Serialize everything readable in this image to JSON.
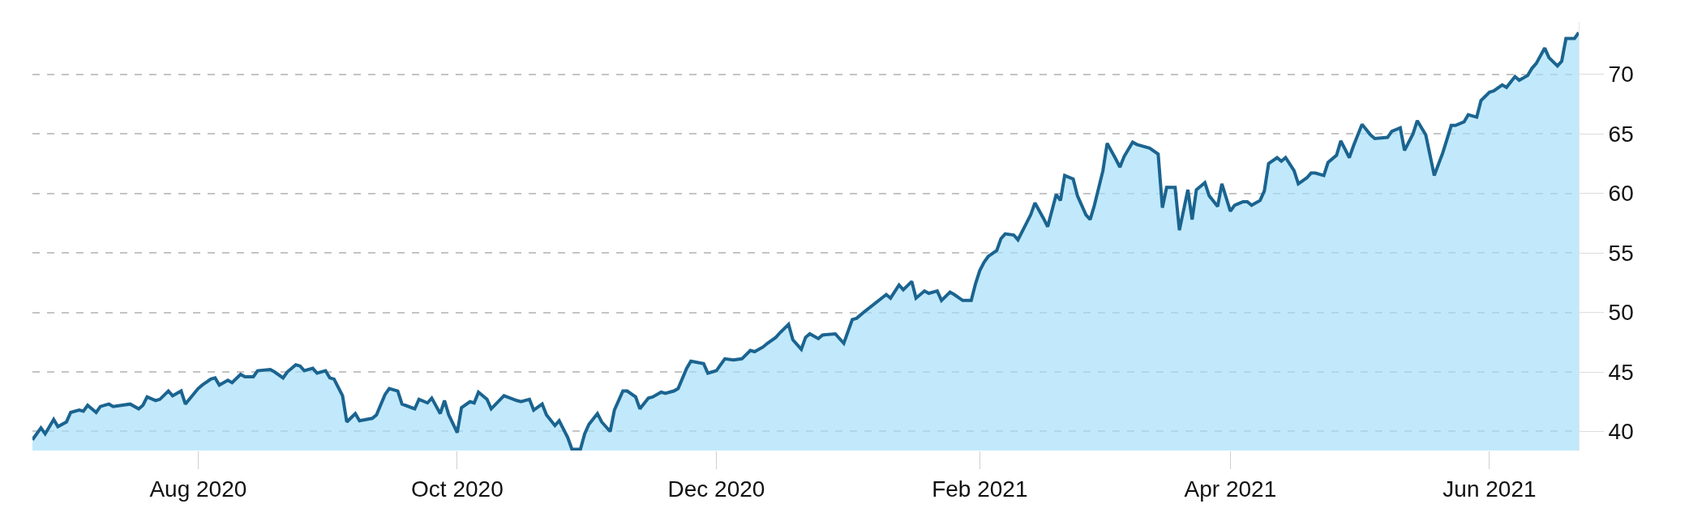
{
  "chart_data": {
    "type": "area",
    "x": [
      "2020-06-23",
      "2020-06-25",
      "2020-06-26",
      "2020-06-28",
      "2020-06-29",
      "2020-07-01",
      "2020-07-02",
      "2020-07-04",
      "2020-07-05",
      "2020-07-06",
      "2020-07-08",
      "2020-07-09",
      "2020-07-11",
      "2020-07-12",
      "2020-07-16",
      "2020-07-18",
      "2020-07-19",
      "2020-07-20",
      "2020-07-22",
      "2020-07-23",
      "2020-07-25",
      "2020-07-26",
      "2020-07-28",
      "2020-07-29",
      "2020-08-01",
      "2020-08-02",
      "2020-08-04",
      "2020-08-05",
      "2020-08-06",
      "2020-08-08",
      "2020-08-09",
      "2020-08-11",
      "2020-08-12",
      "2020-08-14",
      "2020-08-15",
      "2020-08-18",
      "2020-08-19",
      "2020-08-21",
      "2020-08-22",
      "2020-08-24",
      "2020-08-25",
      "2020-08-26",
      "2020-08-28",
      "2020-08-29",
      "2020-08-31",
      "2020-09-01",
      "2020-09-02",
      "2020-09-04",
      "2020-09-05",
      "2020-09-07",
      "2020-09-08",
      "2020-09-11",
      "2020-09-12",
      "2020-09-14",
      "2020-09-15",
      "2020-09-17",
      "2020-09-18",
      "2020-09-21",
      "2020-09-22",
      "2020-09-24",
      "2020-09-25",
      "2020-09-27",
      "2020-09-28",
      "2020-09-29",
      "2020-10-01",
      "2020-10-02",
      "2020-10-04",
      "2020-10-05",
      "2020-10-06",
      "2020-10-08",
      "2020-10-09",
      "2020-10-12",
      "2020-10-15",
      "2020-10-16",
      "2020-10-18",
      "2020-10-19",
      "2020-10-21",
      "2020-10-22",
      "2020-10-24",
      "2020-10-25",
      "2020-10-27",
      "2020-10-28",
      "2020-10-30",
      "2020-10-31",
      "2020-11-01",
      "2020-11-03",
      "2020-11-04",
      "2020-11-06",
      "2020-11-07",
      "2020-11-09",
      "2020-11-10",
      "2020-11-12",
      "2020-11-13",
      "2020-11-15",
      "2020-11-16",
      "2020-11-18",
      "2020-11-19",
      "2020-11-21",
      "2020-11-22",
      "2020-11-24",
      "2020-11-25",
      "2020-11-28",
      "2020-11-29",
      "2020-12-01",
      "2020-12-02",
      "2020-12-03",
      "2020-12-05",
      "2020-12-07",
      "2020-12-09",
      "2020-12-10",
      "2020-12-12",
      "2020-12-13",
      "2020-12-15",
      "2020-12-16",
      "2020-12-18",
      "2020-12-19",
      "2020-12-21",
      "2020-12-22",
      "2020-12-23",
      "2020-12-25",
      "2020-12-26",
      "2020-12-29",
      "2020-12-31",
      "2021-01-02",
      "2021-01-03",
      "2021-01-05",
      "2021-01-10",
      "2021-01-11",
      "2021-01-13",
      "2021-01-14",
      "2021-01-16",
      "2021-01-17",
      "2021-01-19",
      "2021-01-20",
      "2021-01-22",
      "2021-01-23",
      "2021-01-25",
      "2021-01-26",
      "2021-01-28",
      "2021-01-30",
      "2021-01-31",
      "2021-02-01",
      "2021-02-02",
      "2021-02-03",
      "2021-02-05",
      "2021-02-06",
      "2021-02-07",
      "2021-02-09",
      "2021-02-10",
      "2021-02-12",
      "2021-02-13",
      "2021-02-14",
      "2021-02-16",
      "2021-02-17",
      "2021-02-19",
      "2021-02-20",
      "2021-02-21",
      "2021-02-23",
      "2021-02-24",
      "2021-02-26",
      "2021-02-27",
      "2021-02-28",
      "2021-03-02",
      "2021-03-03",
      "2021-03-05",
      "2021-03-06",
      "2021-03-07",
      "2021-03-09",
      "2021-03-10",
      "2021-03-13",
      "2021-03-15",
      "2021-03-16",
      "2021-03-17",
      "2021-03-19",
      "2021-03-20",
      "2021-03-22",
      "2021-03-23",
      "2021-03-24",
      "2021-03-26",
      "2021-03-27",
      "2021-03-29",
      "2021-03-30",
      "2021-04-01",
      "2021-04-02",
      "2021-04-04",
      "2021-04-05",
      "2021-04-06",
      "2021-04-08",
      "2021-04-09",
      "2021-04-10",
      "2021-04-12",
      "2021-04-13",
      "2021-04-14",
      "2021-04-16",
      "2021-04-17",
      "2021-04-19",
      "2021-04-20",
      "2021-04-21",
      "2021-04-23",
      "2021-04-24",
      "2021-04-26",
      "2021-04-27",
      "2021-04-29",
      "2021-04-30",
      "2021-05-02",
      "2021-05-04",
      "2021-05-05",
      "2021-05-08",
      "2021-05-09",
      "2021-05-11",
      "2021-05-12",
      "2021-05-14",
      "2021-05-15",
      "2021-05-17",
      "2021-05-19",
      "2021-05-21",
      "2021-05-23",
      "2021-05-24",
      "2021-05-26",
      "2021-05-27",
      "2021-05-29",
      "2021-05-30",
      "2021-06-01",
      "2021-06-02",
      "2021-06-04",
      "2021-06-05",
      "2021-06-07",
      "2021-06-08",
      "2021-06-10",
      "2021-06-11",
      "2021-06-12",
      "2021-06-14",
      "2021-06-15",
      "2021-06-17",
      "2021-06-18",
      "2021-06-19",
      "2021-06-21",
      "2021-06-22"
    ],
    "series": [
      {
        "color": "#1b6490",
        "values": [
          39.3,
          40.3,
          39.8,
          41.0,
          40.4,
          40.8,
          41.6,
          41.8,
          41.7,
          42.2,
          41.6,
          42.1,
          42.3,
          42.1,
          42.3,
          41.9,
          42.2,
          42.9,
          42.6,
          42.7,
          43.4,
          43.0,
          43.4,
          42.3,
          43.6,
          43.9,
          44.4,
          44.5,
          43.9,
          44.3,
          44.1,
          44.8,
          44.6,
          44.6,
          45.1,
          45.2,
          45.0,
          44.5,
          45.0,
          45.6,
          45.5,
          45.1,
          45.3,
          44.9,
          45.1,
          44.5,
          44.4,
          43.0,
          40.8,
          41.5,
          40.9,
          41.1,
          41.4,
          43.1,
          43.6,
          43.4,
          42.3,
          41.9,
          42.7,
          42.4,
          42.8,
          41.5,
          42.6,
          41.4,
          39.9,
          42.0,
          42.5,
          42.4,
          43.3,
          42.7,
          41.9,
          43.0,
          42.6,
          42.5,
          42.7,
          41.8,
          42.3,
          41.4,
          40.5,
          40.9,
          39.5,
          38.5,
          38.5,
          39.8,
          40.6,
          41.5,
          40.8,
          40.0,
          41.8,
          43.4,
          43.4,
          42.9,
          41.9,
          42.8,
          42.9,
          43.3,
          43.2,
          43.4,
          43.6,
          45.3,
          45.9,
          45.7,
          44.9,
          45.1,
          45.6,
          46.1,
          46.0,
          46.1,
          46.8,
          46.7,
          47.1,
          47.4,
          47.9,
          48.3,
          49.0,
          47.7,
          46.9,
          47.9,
          48.2,
          47.8,
          48.1,
          48.2,
          47.4,
          49.4,
          49.5,
          50.1,
          51.5,
          51.2,
          52.3,
          51.9,
          52.6,
          51.2,
          51.8,
          51.6,
          51.8,
          51.0,
          51.7,
          51.5,
          51.0,
          51.0,
          52.4,
          53.5,
          54.2,
          54.7,
          55.2,
          56.2,
          56.6,
          56.5,
          56.1,
          57.5,
          58.2,
          59.2,
          57.9,
          57.2,
          59.9,
          59.4,
          61.5,
          61.2,
          59.8,
          58.2,
          57.8,
          59.0,
          61.9,
          64.2,
          62.9,
          62.2,
          63.1,
          64.3,
          64.1,
          63.8,
          63.3,
          58.8,
          60.5,
          60.5,
          56.9,
          60.3,
          57.8,
          60.3,
          60.9,
          59.8,
          58.9,
          60.8,
          58.5,
          59.0,
          59.3,
          59.3,
          59.0,
          59.4,
          60.2,
          62.5,
          63.0,
          62.7,
          63.0,
          61.9,
          60.8,
          61.3,
          61.7,
          61.7,
          61.5,
          62.6,
          63.2,
          64.4,
          63.0,
          64.0,
          65.8,
          64.9,
          64.6,
          64.7,
          65.2,
          65.5,
          63.6,
          65.0,
          66.1,
          64.9,
          61.5,
          63.4,
          65.7,
          65.7,
          66.0,
          66.6,
          66.4,
          67.8,
          68.5,
          68.6,
          69.1,
          68.9,
          69.8,
          69.5,
          69.9,
          70.5,
          70.9,
          72.2,
          71.4,
          70.7,
          71.1,
          73.0,
          73.0,
          73.5
        ]
      }
    ],
    "xlim": [
      "2020-06-23",
      "2021-06-22"
    ],
    "xticks": [
      {
        "value": "2020-08-01",
        "label": "Aug 2020"
      },
      {
        "value": "2020-10-01",
        "label": "Oct 2020"
      },
      {
        "value": "2020-12-01",
        "label": "Dec 2020"
      },
      {
        "value": "2021-02-01",
        "label": "Feb 2021"
      },
      {
        "value": "2021-04-01",
        "label": "Apr 2021"
      },
      {
        "value": "2021-06-01",
        "label": "Jun 2021"
      }
    ],
    "ylim": [
      38.4,
      74.4
    ],
    "yticks": [
      40,
      45,
      50,
      55,
      60,
      65,
      70
    ],
    "grid": "y",
    "line_style": "solid",
    "marker": "none"
  }
}
